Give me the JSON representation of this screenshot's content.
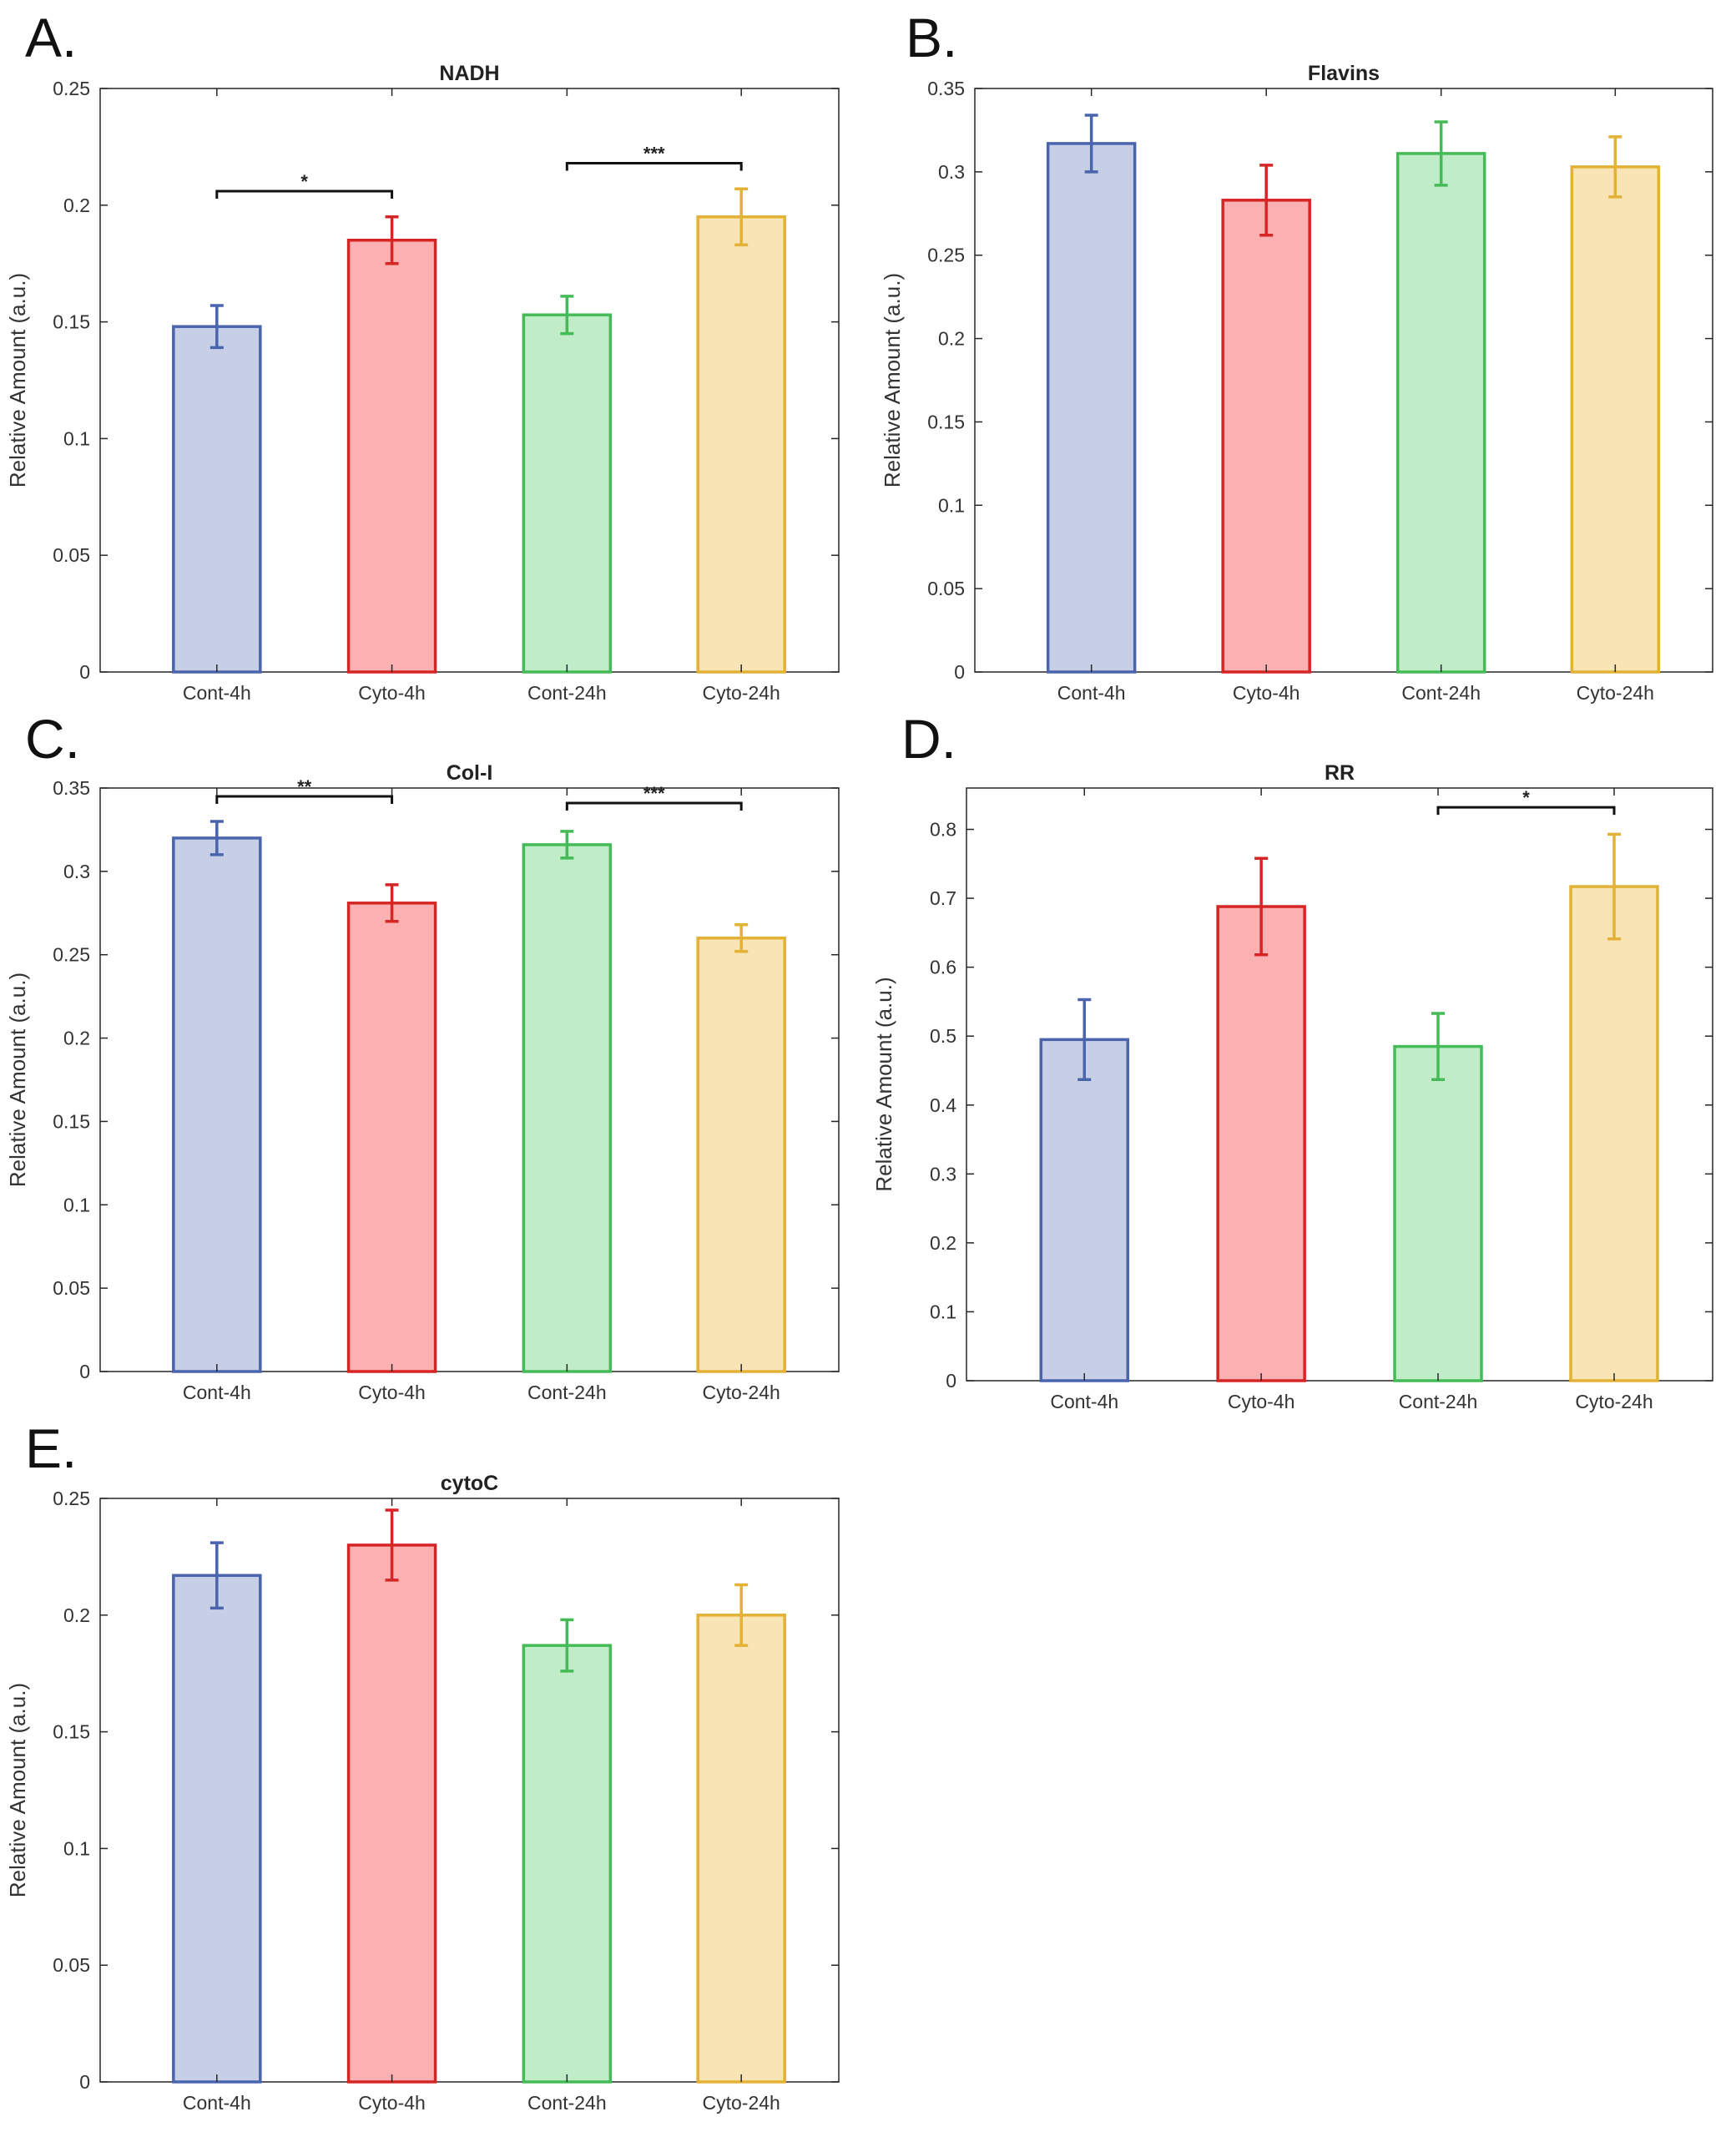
{
  "colors": {
    "blue": {
      "fill": "#c6cfe6",
      "stroke": "#4a64ae"
    },
    "red": {
      "fill": "#fbb1b1",
      "stroke": "#d62525"
    },
    "green": {
      "fill": "#c0ecc8",
      "stroke": "#45bb57"
    },
    "yellow": {
      "fill": "#f9e4b5",
      "stroke": "#e2b136"
    },
    "axis": "#262626"
  },
  "chart_data": [
    {
      "panel": "A.",
      "type": "bar",
      "title": "NADH",
      "ylabel": "Relative Amount (a.u.)",
      "xlabel": "",
      "categories": [
        "Cont-4h",
        "Cyto-4h",
        "Cont-24h",
        "Cyto-24h"
      ],
      "values": [
        0.148,
        0.185,
        0.153,
        0.195
      ],
      "errors": [
        0.009,
        0.01,
        0.008,
        0.012
      ],
      "bar_colors": [
        "blue",
        "red",
        "green",
        "yellow"
      ],
      "ylim": [
        0,
        0.25
      ],
      "yticks": [
        0,
        0.05,
        0.1,
        0.15,
        0.2,
        0.25
      ],
      "ytick_labels": [
        "0",
        "0.05",
        "0.1",
        "0.15",
        "0.2",
        "0.25"
      ],
      "significance": [
        {
          "from": 0,
          "to": 1,
          "y": 0.206,
          "label": "*"
        },
        {
          "from": 2,
          "to": 3,
          "y": 0.218,
          "label": "***"
        }
      ]
    },
    {
      "panel": "B.",
      "type": "bar",
      "title": "Flavins",
      "ylabel": "Relative Amount (a.u.)",
      "xlabel": "",
      "categories": [
        "Cont-4h",
        "Cyto-4h",
        "Cont-24h",
        "Cyto-24h"
      ],
      "values": [
        0.317,
        0.283,
        0.311,
        0.303
      ],
      "errors": [
        0.017,
        0.021,
        0.019,
        0.018
      ],
      "bar_colors": [
        "blue",
        "red",
        "green",
        "yellow"
      ],
      "ylim": [
        0,
        0.35
      ],
      "yticks": [
        0,
        0.05,
        0.1,
        0.15,
        0.2,
        0.25,
        0.3,
        0.35
      ],
      "ytick_labels": [
        "0",
        "0.05",
        "0.1",
        "0.15",
        "0.2",
        "0.25",
        "0.3",
        "0.35"
      ],
      "significance": []
    },
    {
      "panel": "C.",
      "type": "bar",
      "title": "Col-I",
      "ylabel": "Relative Amount (a.u.)",
      "xlabel": "",
      "categories": [
        "Cont-4h",
        "Cyto-4h",
        "Cont-24h",
        "Cyto-24h"
      ],
      "values": [
        0.32,
        0.281,
        0.316,
        0.26
      ],
      "errors": [
        0.01,
        0.011,
        0.008,
        0.008
      ],
      "bar_colors": [
        "blue",
        "red",
        "green",
        "yellow"
      ],
      "ylim": [
        0,
        0.35
      ],
      "yticks": [
        0,
        0.05,
        0.1,
        0.15,
        0.2,
        0.25,
        0.3,
        0.35
      ],
      "ytick_labels": [
        "0",
        "0.05",
        "0.1",
        "0.15",
        "0.2",
        "0.25",
        "0.3",
        "0.35"
      ],
      "significance": [
        {
          "from": 0,
          "to": 1,
          "y": 0.345,
          "label": "**"
        },
        {
          "from": 2,
          "to": 3,
          "y": 0.341,
          "label": "***"
        }
      ]
    },
    {
      "panel": "D.",
      "type": "bar",
      "title": "RR",
      "ylabel": "Relative Amount (a.u.)",
      "xlabel": "",
      "categories": [
        "Cont-4h",
        "Cyto-4h",
        "Cont-24h",
        "Cyto-24h"
      ],
      "values": [
        0.495,
        0.688,
        0.485,
        0.717
      ],
      "errors": [
        0.058,
        0.07,
        0.048,
        0.076
      ],
      "bar_colors": [
        "blue",
        "red",
        "green",
        "yellow"
      ],
      "ylim": [
        0,
        0.86
      ],
      "yticks": [
        0,
        0.1,
        0.2,
        0.3,
        0.4,
        0.5,
        0.6,
        0.7,
        0.8
      ],
      "ytick_labels": [
        "0",
        "0.1",
        "0.2",
        "0.3",
        "0.4",
        "0.5",
        "0.6",
        "0.7",
        "0.8"
      ],
      "significance": [
        {
          "from": 2,
          "to": 3,
          "y": 0.832,
          "label": "*"
        }
      ]
    },
    {
      "panel": "E.",
      "type": "bar",
      "title": "cytoC",
      "ylabel": "Relative Amount (a.u.)",
      "xlabel": "",
      "categories": [
        "Cont-4h",
        "Cyto-4h",
        "Cont-24h",
        "Cyto-24h"
      ],
      "values": [
        0.217,
        0.23,
        0.187,
        0.2
      ],
      "errors": [
        0.014,
        0.015,
        0.011,
        0.013
      ],
      "bar_colors": [
        "blue",
        "red",
        "green",
        "yellow"
      ],
      "ylim": [
        0,
        0.25
      ],
      "yticks": [
        0,
        0.05,
        0.1,
        0.15,
        0.2,
        0.25
      ],
      "ytick_labels": [
        "0",
        "0.05",
        "0.1",
        "0.15",
        "0.2",
        "0.25"
      ],
      "significance": []
    }
  ]
}
